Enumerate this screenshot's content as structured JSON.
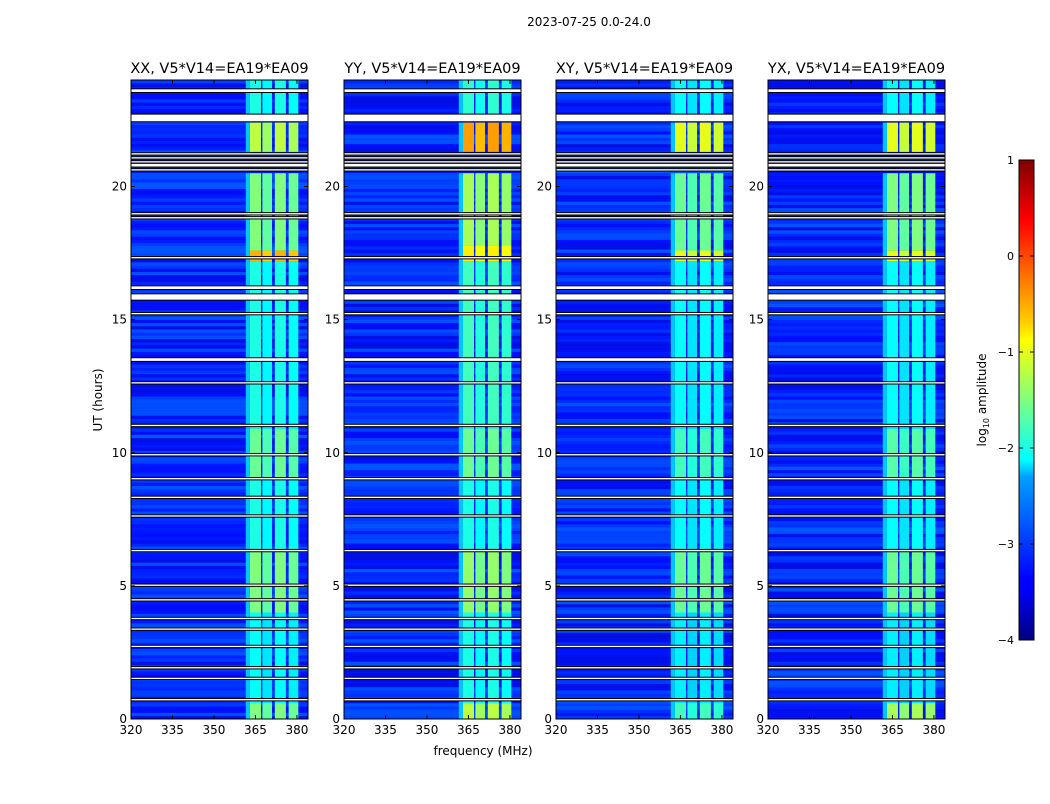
{
  "chart_data": {
    "type": "heatmap",
    "title": "2023-07-25 0.0-24.0",
    "xlabel": "frequency (MHz)",
    "ylabel": "UT (hours)",
    "xlim": [
      320,
      384
    ],
    "ylim": [
      0,
      24
    ],
    "xticks": [
      "320",
      "335",
      "350",
      "365",
      "380"
    ],
    "xtick_values": [
      320,
      335,
      350,
      365,
      380
    ],
    "yticks": [
      "0",
      "5",
      "10",
      "15",
      "20"
    ],
    "ytick_values": [
      0,
      5,
      10,
      15,
      20
    ],
    "colorbar": {
      "label": "log10 amplitude",
      "label_main": "log",
      "label_sub": "10",
      "label_tail": " amplitude",
      "range": [
        -4,
        1
      ],
      "ticks": [
        "−4",
        "−3",
        "−2",
        "−1",
        "0",
        "1"
      ],
      "tick_values": [
        -4,
        -3,
        -2,
        -1,
        0,
        1
      ],
      "colormap": "jet"
    },
    "background_level": -3.2,
    "rfi_subbands_mhz": [
      [
        363,
        367
      ],
      [
        367.5,
        371
      ],
      [
        372,
        376
      ],
      [
        377,
        380.5
      ]
    ],
    "flagged_gaps_hours": [
      [
        23.55,
        23.65
      ],
      [
        22.45,
        22.7
      ],
      [
        21.2,
        21.25
      ],
      [
        21.05,
        21.1
      ],
      [
        20.9,
        20.95
      ],
      [
        20.75,
        20.85
      ],
      [
        20.6,
        20.65
      ],
      [
        18.95,
        19.0
      ],
      [
        18.8,
        18.85
      ],
      [
        17.3,
        17.35
      ],
      [
        16.15,
        16.25
      ],
      [
        15.75,
        15.95
      ],
      [
        15.2,
        15.25
      ],
      [
        13.45,
        13.55
      ],
      [
        12.6,
        12.65
      ],
      [
        11.0,
        11.05
      ],
      [
        9.9,
        9.95
      ],
      [
        9.0,
        9.05
      ],
      [
        8.3,
        8.35
      ],
      [
        7.6,
        7.65
      ],
      [
        6.3,
        6.35
      ],
      [
        5.0,
        5.05
      ],
      [
        4.45,
        4.5
      ],
      [
        3.75,
        3.8
      ],
      [
        3.35,
        3.4
      ],
      [
        2.7,
        2.75
      ],
      [
        1.9,
        1.95
      ],
      [
        1.5,
        1.55
      ],
      [
        0.7,
        0.75
      ]
    ],
    "panels": [
      {
        "title": "XX, V5*V14=EA19*EA09",
        "blocks": [
          [
            0,
            0.6,
            -1.5
          ],
          [
            0.6,
            4,
            -2.1
          ],
          [
            4,
            6.4,
            -1.5
          ],
          [
            6.4,
            9,
            -2.0
          ],
          [
            9,
            10.9,
            -1.6
          ],
          [
            10.9,
            17.2,
            -2.0
          ],
          [
            17.2,
            17.6,
            -0.5
          ],
          [
            17.6,
            20.5,
            -1.5
          ],
          [
            21.3,
            22.4,
            -1.2
          ],
          [
            22.7,
            24,
            -2.0
          ]
        ]
      },
      {
        "title": "YY, V5*V14=EA19*EA09",
        "blocks": [
          [
            0,
            0.6,
            -1.2
          ],
          [
            0.6,
            4,
            -2.0
          ],
          [
            4,
            6.4,
            -1.4
          ],
          [
            6.4,
            9,
            -2.0
          ],
          [
            9,
            10.9,
            -1.6
          ],
          [
            10.9,
            17.2,
            -1.8
          ],
          [
            17.2,
            17.8,
            -0.8
          ],
          [
            17.8,
            20.5,
            -1.3
          ],
          [
            21.3,
            22.4,
            -0.4
          ],
          [
            22.7,
            24,
            -1.9
          ]
        ]
      },
      {
        "title": "XY, V5*V14=EA19*EA09",
        "blocks": [
          [
            0,
            0.6,
            -1.8
          ],
          [
            0.6,
            4,
            -2.2
          ],
          [
            4,
            6.4,
            -1.6
          ],
          [
            6.4,
            9,
            -2.1
          ],
          [
            9,
            10.9,
            -1.8
          ],
          [
            10.9,
            17.2,
            -2.1
          ],
          [
            17.2,
            17.6,
            -1.0
          ],
          [
            17.6,
            20.5,
            -1.6
          ],
          [
            21.3,
            22.4,
            -1.0
          ],
          [
            22.7,
            24,
            -2.1
          ]
        ]
      },
      {
        "title": "YX, V5*V14=EA19*EA09",
        "blocks": [
          [
            0,
            0.6,
            -1.3
          ],
          [
            0.6,
            4,
            -2.2
          ],
          [
            4,
            6.4,
            -1.6
          ],
          [
            6.4,
            9,
            -2.1
          ],
          [
            9,
            10.9,
            -1.7
          ],
          [
            10.9,
            17.2,
            -2.1
          ],
          [
            17.2,
            17.6,
            -1.0
          ],
          [
            17.6,
            20.5,
            -1.5
          ],
          [
            21.3,
            22.4,
            -1.0
          ],
          [
            22.7,
            24,
            -2.1
          ]
        ]
      }
    ]
  }
}
